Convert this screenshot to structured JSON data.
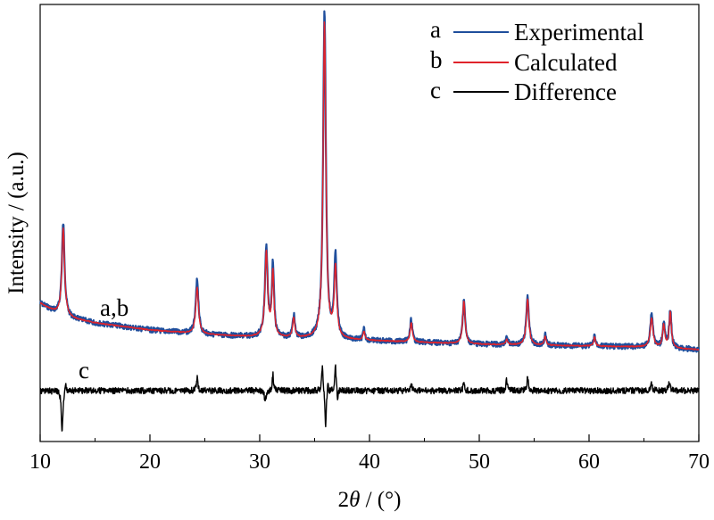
{
  "chart_data": {
    "type": "line",
    "xlabel_prefix": "2",
    "xlabel_theta": "θ",
    "xlabel_suffix": " / (°)",
    "ylabel": "Intensity / (a.u.)",
    "xlim": [
      10,
      70
    ],
    "x_ticks": [
      "10",
      "20",
      "30",
      "40",
      "50",
      "60",
      "70"
    ],
    "grid": false,
    "legend_position": "top-right",
    "legend": [
      {
        "key": "a",
        "name": "Experimental",
        "color": "#1f4e9c"
      },
      {
        "key": "b",
        "name": "Calculated",
        "color": "#e0232b"
      },
      {
        "key": "c",
        "name": "Difference",
        "color": "#000000"
      }
    ],
    "annotations": {
      "ab_label": "a,b",
      "c_label": "c"
    },
    "series": [
      {
        "key": "a",
        "color": "#1f4e9c",
        "baseline": [
          [
            10,
            340
          ],
          [
            12,
            355
          ],
          [
            15,
            362
          ],
          [
            20,
            370
          ],
          [
            25,
            375
          ],
          [
            30,
            378
          ],
          [
            35,
            380
          ],
          [
            40,
            382
          ],
          [
            45,
            384
          ],
          [
            50,
            386
          ],
          [
            55,
            387
          ],
          [
            60,
            388
          ],
          [
            65,
            389
          ],
          [
            70,
            392
          ]
        ],
        "peaks": [
          [
            12.1,
            105,
            0.15
          ],
          [
            24.3,
            60,
            0.15
          ],
          [
            30.6,
            100,
            0.15
          ],
          [
            31.2,
            80,
            0.12
          ],
          [
            33.1,
            25,
            0.12
          ],
          [
            35.9,
            368,
            0.15
          ],
          [
            36.9,
            90,
            0.14
          ],
          [
            39.5,
            12,
            0.1
          ],
          [
            43.8,
            25,
            0.12
          ],
          [
            48.6,
            50,
            0.13
          ],
          [
            52.5,
            10,
            0.1
          ],
          [
            54.4,
            55,
            0.14
          ],
          [
            56.0,
            12,
            0.1
          ],
          [
            60.5,
            12,
            0.1
          ],
          [
            65.7,
            38,
            0.15
          ],
          [
            66.8,
            28,
            0.12
          ],
          [
            67.4,
            43,
            0.12
          ]
        ]
      },
      {
        "key": "b",
        "color": "#e0232b",
        "baseline": [
          [
            10,
            340
          ],
          [
            12,
            355
          ],
          [
            15,
            362
          ],
          [
            20,
            370
          ],
          [
            25,
            375
          ],
          [
            30,
            378
          ],
          [
            35,
            380
          ],
          [
            40,
            382
          ],
          [
            45,
            384
          ],
          [
            50,
            386
          ],
          [
            55,
            387
          ],
          [
            60,
            388
          ],
          [
            65,
            389
          ],
          [
            70,
            392
          ]
        ],
        "peaks": [
          [
            12.1,
            100,
            0.15
          ],
          [
            24.3,
            52,
            0.15
          ],
          [
            30.6,
            95,
            0.15
          ],
          [
            31.2,
            72,
            0.12
          ],
          [
            33.1,
            22,
            0.12
          ],
          [
            35.9,
            355,
            0.15
          ],
          [
            36.9,
            78,
            0.14
          ],
          [
            39.5,
            10,
            0.1
          ],
          [
            43.8,
            22,
            0.12
          ],
          [
            48.6,
            48,
            0.13
          ],
          [
            52.5,
            6,
            0.1
          ],
          [
            54.4,
            52,
            0.14
          ],
          [
            56.0,
            10,
            0.1
          ],
          [
            60.5,
            10,
            0.1
          ],
          [
            65.7,
            33,
            0.15
          ],
          [
            66.8,
            25,
            0.12
          ],
          [
            67.4,
            40,
            0.12
          ]
        ]
      },
      {
        "key": "c",
        "color": "#000000",
        "baseline": [
          [
            10,
            438
          ],
          [
            70,
            438
          ]
        ],
        "features": [
          [
            12.0,
            -48,
            0.08
          ],
          [
            12.3,
            12,
            0.06
          ],
          [
            24.3,
            14,
            0.08
          ],
          [
            30.5,
            -14,
            0.07
          ],
          [
            31.2,
            18,
            0.07
          ],
          [
            35.7,
            30,
            0.07
          ],
          [
            36.0,
            -45,
            0.07
          ],
          [
            36.2,
            12,
            0.05
          ],
          [
            36.9,
            28,
            0.07
          ],
          [
            37.1,
            -12,
            0.05
          ],
          [
            43.8,
            8,
            0.08
          ],
          [
            48.6,
            8,
            0.08
          ],
          [
            52.5,
            12,
            0.08
          ],
          [
            54.4,
            14,
            0.08
          ],
          [
            65.7,
            8,
            0.08
          ],
          [
            67.3,
            10,
            0.08
          ]
        ]
      }
    ]
  }
}
